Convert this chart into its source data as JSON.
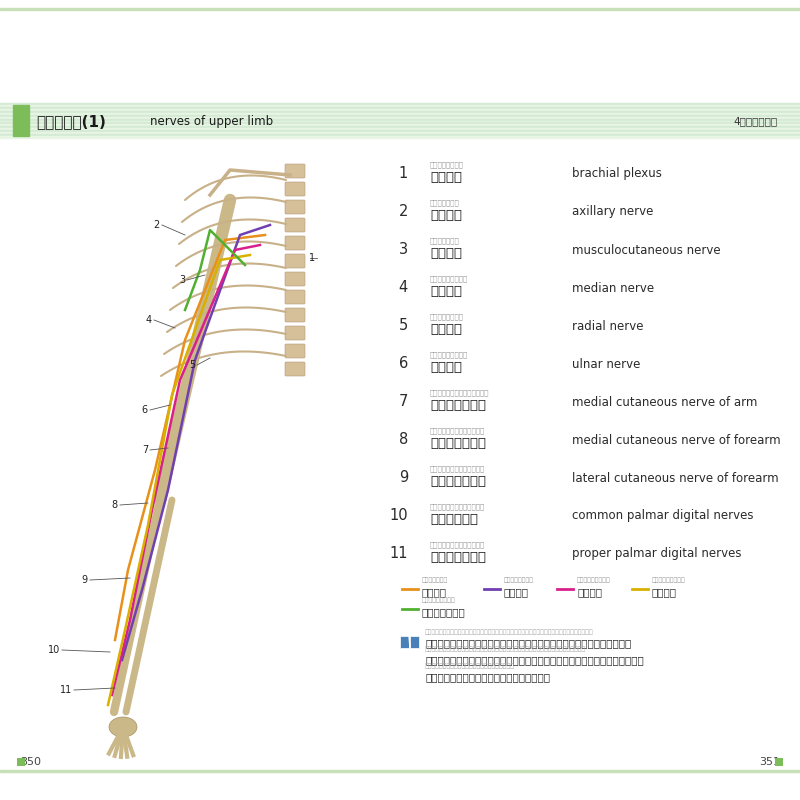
{
  "title_jp": "上肢の神経(1)",
  "title_en": "nerves of upper limb",
  "chapter": "4　上肢と下肢",
  "header_stripe_colors": [
    "#d4ead4",
    "#e8f5e4"
  ],
  "header_accent": "#7cbd5a",
  "page_left": "350",
  "page_right": "351",
  "items": [
    {
      "num": "1",
      "furigana": "わんしんけいそう",
      "jp": "腕神経叢",
      "en": "brachial plexus"
    },
    {
      "num": "2",
      "furigana": "えきかしんけい",
      "jp": "腋窩神経",
      "en": "axillary nerve"
    },
    {
      "num": "3",
      "furigana": "きんぴしんけい",
      "jp": "筋皮神経",
      "en": "musculocutaneous nerve"
    },
    {
      "num": "4",
      "furigana": "せいちゅうしんけい",
      "jp": "正中神経",
      "en": "median nerve"
    },
    {
      "num": "5",
      "furigana": "とうこつしんけい",
      "jp": "橈骨神経",
      "en": "radial nerve"
    },
    {
      "num": "6",
      "furigana": "しゃっこつしんけい",
      "jp": "尺骨神経",
      "en": "ulnar nerve"
    },
    {
      "num": "7",
      "furigana": "ないそくじょうわんひしんけい",
      "jp": "内側上腕皮神経",
      "en": "medial cutaneous nerve of arm"
    },
    {
      "num": "8",
      "furigana": "ないそくぜんわんひしんけい",
      "jp": "内側前腕皮神経",
      "en": "medial cutaneous nerve of forearm"
    },
    {
      "num": "9",
      "furigana": "がいそくぜんわんひしんけい",
      "jp": "外側前腕皮神経",
      "en": "lateral cutaneous nerve of forearm"
    },
    {
      "num": "10",
      "furigana": "そうしょうそくしししんけい",
      "jp": "総掌側指神経",
      "en": "common palmar digital nerves"
    },
    {
      "num": "11",
      "furigana": "こゆうしょうそくししんけい",
      "jp": "固有掌側指神経",
      "en": "proper palmar digital nerves"
    }
  ],
  "legend": [
    {
      "color": "#e8901a",
      "label_furi": "きんぴしんけい",
      "label": "筋皮神経"
    },
    {
      "color": "#7040b0",
      "label_furi": "とうこつしんけい",
      "label": "橈骨神経"
    },
    {
      "color": "#d8208c",
      "label_furi": "せいちゅうしんけい",
      "label": "正中神経"
    },
    {
      "color": "#d8b000",
      "label_furi": "しゃっこつしんけい",
      "label": "尺骨神経"
    },
    {
      "color": "#50b030",
      "label_furi": "そのほかのしんけい",
      "label": "そのほかの神経"
    }
  ],
  "note_icon_color": "#4a80b8",
  "white": "#ffffff",
  "stripe_count": 18
}
